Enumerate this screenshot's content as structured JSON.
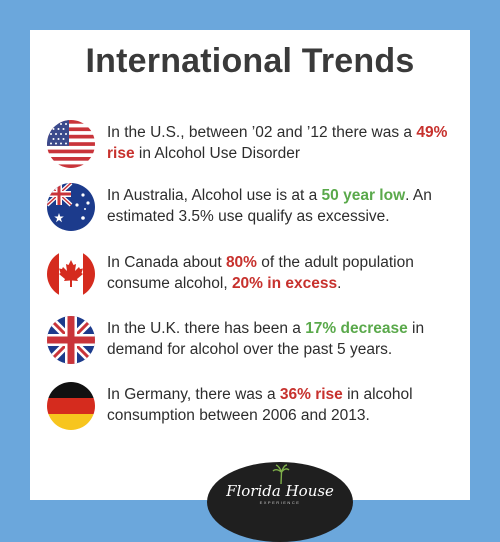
{
  "title": "International Trends",
  "items": [
    {
      "flag": "usa-flag-icon",
      "parts": [
        {
          "t": "In the U.S., between ’02 and ’12 there was a ",
          "s": ""
        },
        {
          "t": "49% rise",
          "s": "red"
        },
        {
          "t": " in Alcohol Use Disorder",
          "s": ""
        }
      ]
    },
    {
      "flag": "australia-flag-icon",
      "parts": [
        {
          "t": "In Australia, Alcohol use is at a ",
          "s": ""
        },
        {
          "t": "50 year low",
          "s": "green"
        },
        {
          "t": ". An estimated 3.5% use qualify as excessive.",
          "s": ""
        }
      ]
    },
    {
      "flag": "canada-flag-icon",
      "parts": [
        {
          "t": "In Canada about ",
          "s": ""
        },
        {
          "t": "80%",
          "s": "red"
        },
        {
          "t": " of the adult population consume alcohol, ",
          "s": ""
        },
        {
          "t": "20% in excess",
          "s": "red"
        },
        {
          "t": ".",
          "s": ""
        }
      ]
    },
    {
      "flag": "uk-flag-icon",
      "parts": [
        {
          "t": "In the U.K. there has been a ",
          "s": ""
        },
        {
          "t": "17% decrease",
          "s": "green"
        },
        {
          "t": " in demand for alcohol over the past 5 years.",
          "s": ""
        }
      ]
    },
    {
      "flag": "germany-flag-icon",
      "parts": [
        {
          "t": "In Germany, there was a ",
          "s": ""
        },
        {
          "t": "36% rise",
          "s": "red"
        },
        {
          "t": " in alcohol consumption between 2006 and 2013.",
          "s": ""
        }
      ]
    }
  ],
  "logo": {
    "name": "Florida House",
    "sub": "EXPERIENCE"
  },
  "colors": {
    "background": "#6ba7dc",
    "red": "#c7312d",
    "green": "#5aa94b",
    "text": "#2d2d2d"
  }
}
